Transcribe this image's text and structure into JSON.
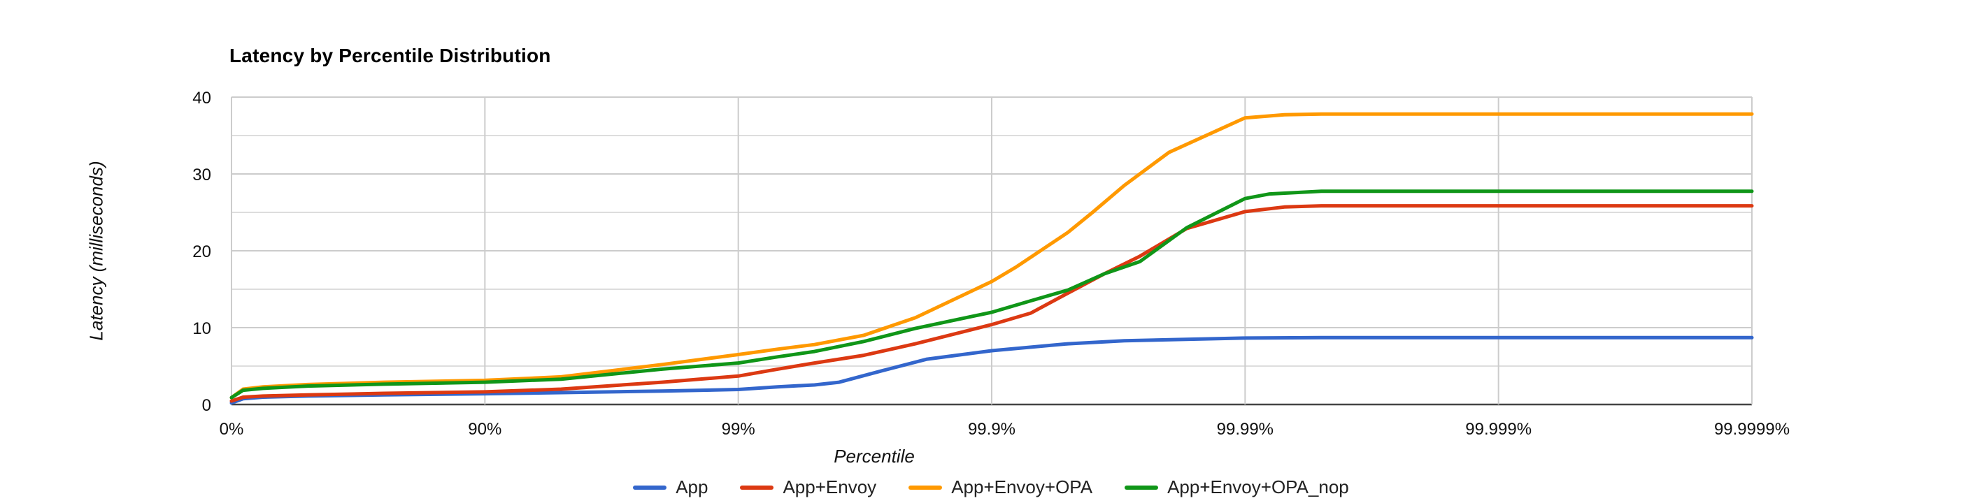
{
  "title": "Latency by Percentile Distribution",
  "axis": {
    "x_title": "Percentile",
    "y_title": "Latency (milliseconds)"
  },
  "colors": {
    "app": "#3366CC",
    "app_envoy": "#DC3912",
    "app_envoy_opa": "#FF9900",
    "app_envoy_opa_nop": "#109618",
    "gridline_major": "#cccccc",
    "gridline_minor": "#dddddd",
    "axis_baseline": "#444444",
    "background": "#ffffff"
  },
  "chart_data": {
    "type": "line",
    "title": "Latency by Percentile Distribution",
    "xlabel": "Percentile",
    "ylabel": "Latency (milliseconds)",
    "x_scale": "log-percentile (equal spacing per decade of nines: 0%, 90%, 99%, ... 99.9999%)",
    "x_ticks": [
      "0%",
      "90%",
      "99%",
      "99.9%",
      "99.99%",
      "99.999%",
      "99.9999%"
    ],
    "x_tick_decades": [
      0,
      1,
      2,
      3,
      4,
      5,
      6
    ],
    "y_ticks": [
      0,
      10,
      20,
      30,
      40
    ],
    "ylim": [
      0,
      40
    ],
    "grid": true,
    "minor_gridlines_every_ms": 5,
    "legend_position": "bottom",
    "series": [
      {
        "name": "App",
        "color": "#3366CC",
        "points": [
          [
            0,
            0.2
          ],
          [
            10,
            0.75
          ],
          [
            25,
            0.95
          ],
          [
            50,
            1.1
          ],
          [
            75,
            1.25
          ],
          [
            90,
            1.4
          ],
          [
            95,
            1.55
          ],
          [
            98,
            1.75
          ],
          [
            99,
            1.95
          ],
          [
            99.3,
            2.3
          ],
          [
            99.5,
            2.55
          ],
          [
            99.6,
            2.9
          ],
          [
            99.73,
            4.4
          ],
          [
            99.82,
            5.9
          ],
          [
            99.9,
            7.0
          ],
          [
            99.95,
            7.9
          ],
          [
            99.97,
            8.3
          ],
          [
            99.99,
            8.65
          ],
          [
            99.995,
            8.7
          ],
          [
            99.999,
            8.7
          ],
          [
            99.9999,
            8.7
          ]
        ]
      },
      {
        "name": "App+Envoy",
        "color": "#DC3912",
        "points": [
          [
            0,
            0.45
          ],
          [
            10,
            0.95
          ],
          [
            25,
            1.1
          ],
          [
            50,
            1.25
          ],
          [
            75,
            1.45
          ],
          [
            90,
            1.65
          ],
          [
            95,
            2.0
          ],
          [
            98,
            2.9
          ],
          [
            99,
            3.7
          ],
          [
            99.3,
            4.6
          ],
          [
            99.5,
            5.4
          ],
          [
            99.68,
            6.4
          ],
          [
            99.8,
            7.9
          ],
          [
            99.9,
            10.4
          ],
          [
            99.93,
            11.9
          ],
          [
            99.95,
            14.5
          ],
          [
            99.964,
            17.0
          ],
          [
            99.974,
            19.3
          ],
          [
            99.983,
            22.9
          ],
          [
            99.99,
            25.1
          ],
          [
            99.993,
            25.7
          ],
          [
            99.995,
            25.85
          ],
          [
            99.999,
            25.85
          ],
          [
            99.9999,
            25.85
          ]
        ]
      },
      {
        "name": "App+Envoy+OPA",
        "color": "#FF9900",
        "points": [
          [
            0,
            0.9
          ],
          [
            10,
            2.0
          ],
          [
            25,
            2.3
          ],
          [
            50,
            2.6
          ],
          [
            75,
            2.9
          ],
          [
            90,
            3.15
          ],
          [
            95,
            3.6
          ],
          [
            98,
            5.2
          ],
          [
            99,
            6.5
          ],
          [
            99.3,
            7.2
          ],
          [
            99.5,
            7.8
          ],
          [
            99.68,
            9.0
          ],
          [
            99.8,
            11.3
          ],
          [
            99.9,
            16.0
          ],
          [
            99.92,
            17.9
          ],
          [
            99.95,
            22.4
          ],
          [
            99.96,
            25.0
          ],
          [
            99.97,
            28.5
          ],
          [
            99.98,
            32.8
          ],
          [
            99.99,
            37.3
          ],
          [
            99.993,
            37.7
          ],
          [
            99.995,
            37.8
          ],
          [
            99.999,
            37.8
          ],
          [
            99.9999,
            37.8
          ]
        ]
      },
      {
        "name": "App+Envoy+OPA_nop",
        "color": "#109618",
        "points": [
          [
            0,
            0.9
          ],
          [
            10,
            1.85
          ],
          [
            25,
            2.1
          ],
          [
            50,
            2.4
          ],
          [
            75,
            2.65
          ],
          [
            90,
            2.9
          ],
          [
            95,
            3.3
          ],
          [
            98,
            4.6
          ],
          [
            99,
            5.4
          ],
          [
            99.3,
            6.2
          ],
          [
            99.5,
            6.9
          ],
          [
            99.68,
            8.2
          ],
          [
            99.8,
            9.9
          ],
          [
            99.9,
            12.0
          ],
          [
            99.93,
            13.5
          ],
          [
            99.95,
            14.9
          ],
          [
            99.964,
            17.0
          ],
          [
            99.974,
            18.6
          ],
          [
            99.983,
            23.0
          ],
          [
            99.99,
            26.8
          ],
          [
            99.992,
            27.4
          ],
          [
            99.995,
            27.75
          ],
          [
            99.999,
            27.75
          ],
          [
            99.9999,
            27.75
          ]
        ]
      }
    ]
  }
}
